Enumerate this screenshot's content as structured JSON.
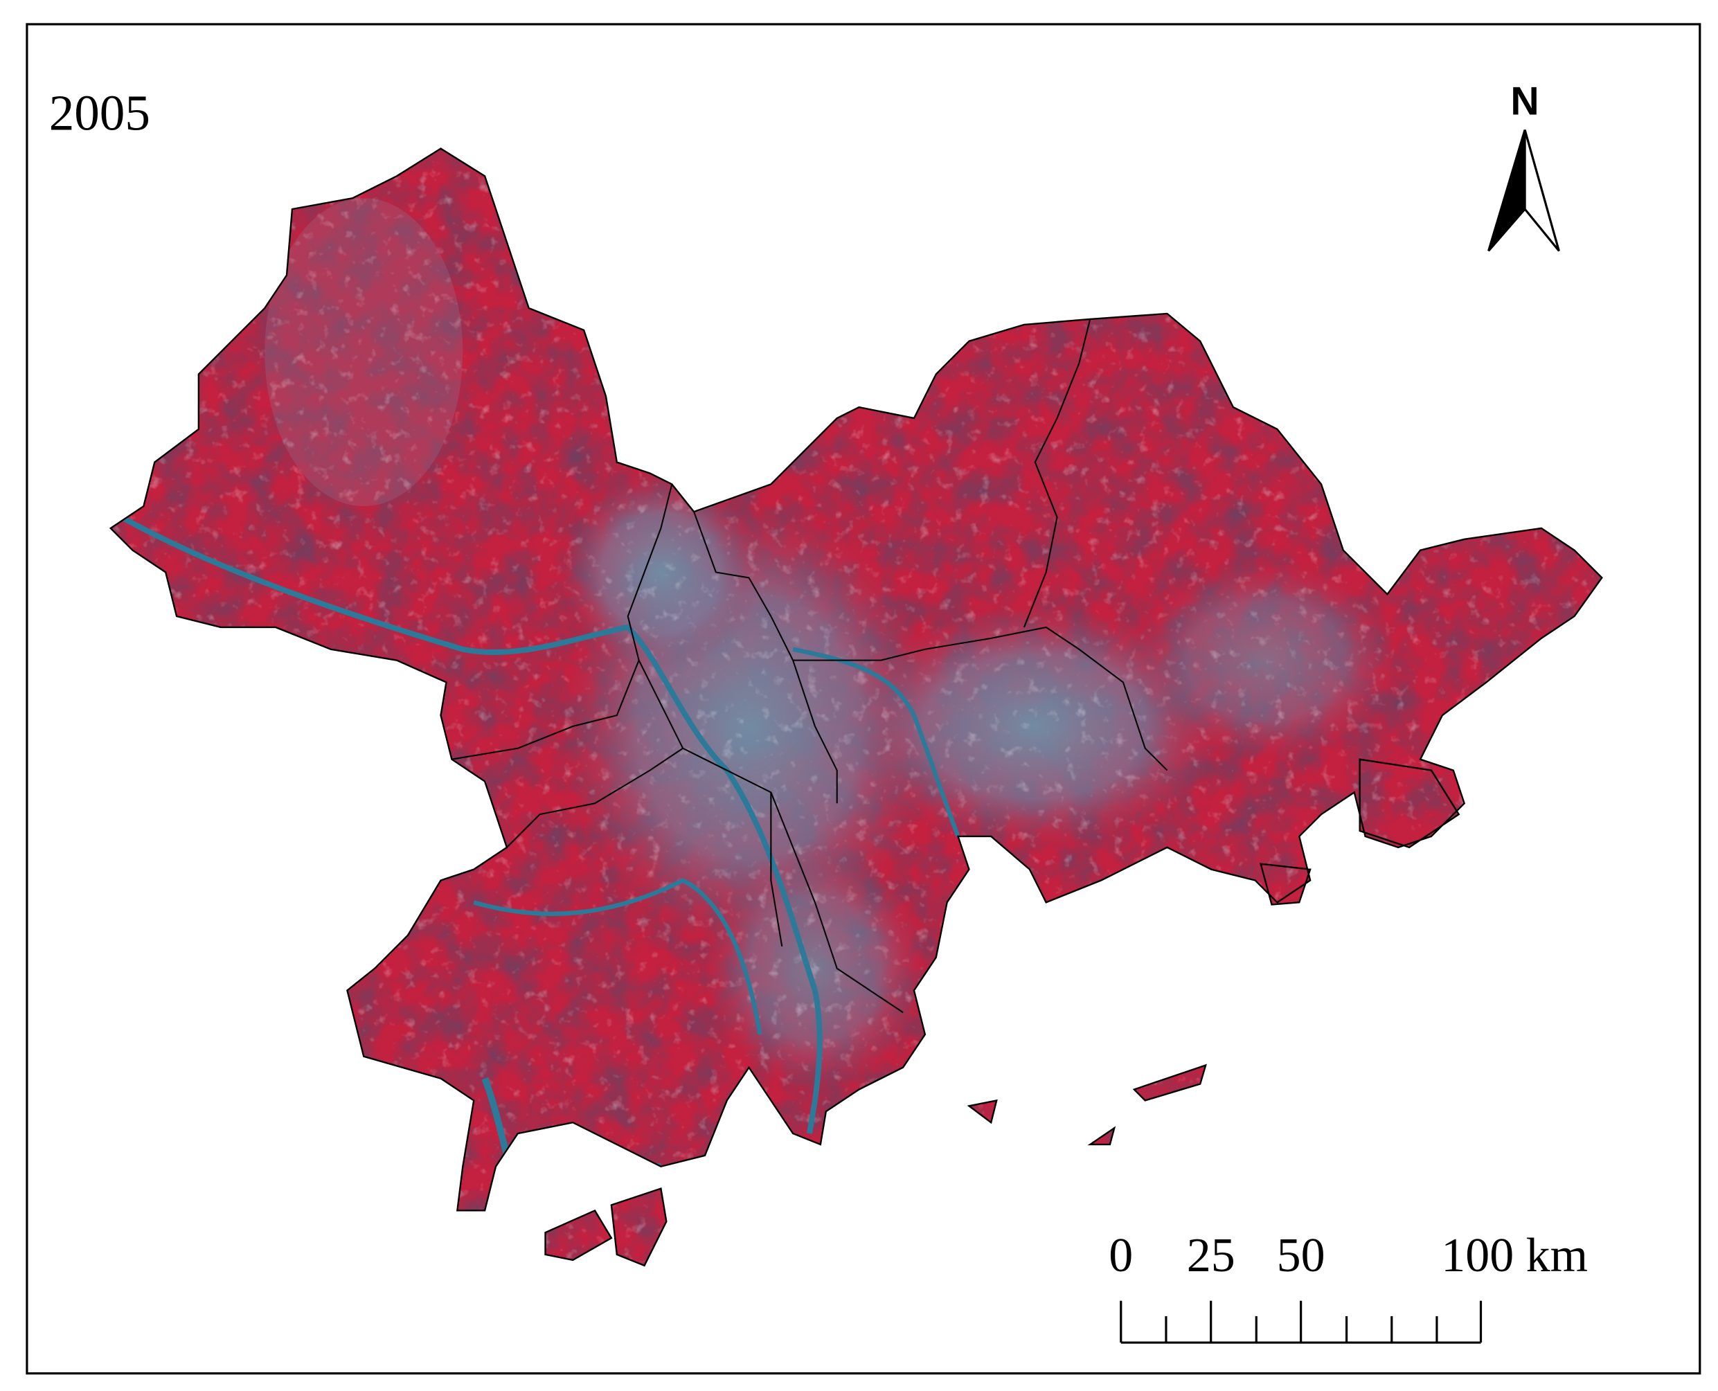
{
  "title": "2005",
  "north_arrow": {
    "label": "N"
  },
  "scale_bar": {
    "ticks": [
      0,
      25,
      50,
      {
        "value": 100,
        "label": "100 km"
      }
    ]
  }
}
